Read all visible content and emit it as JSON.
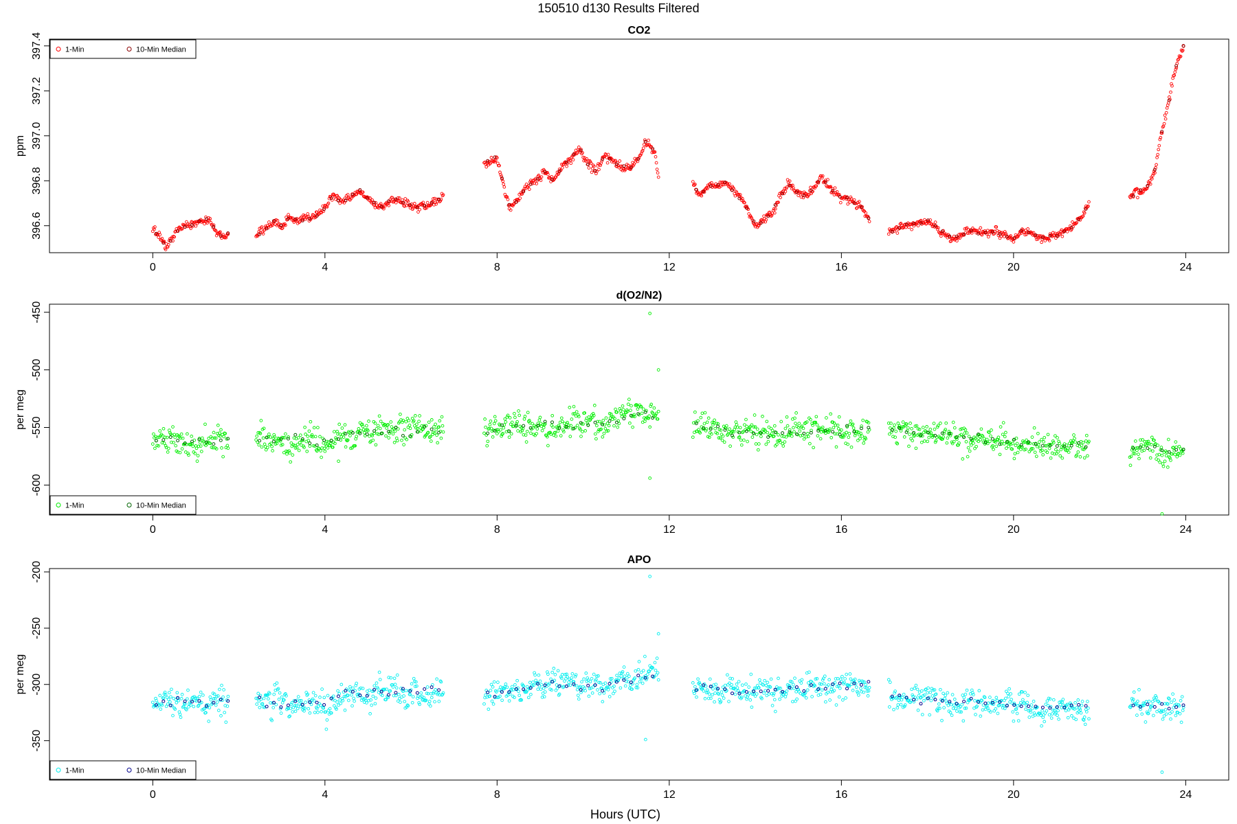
{
  "figure": {
    "title": "150510    d130    Results Filtered",
    "xlabel": "Hours (UTC)"
  },
  "chart_data": [
    {
      "type": "scatter",
      "title": "CO2",
      "xlabel": "",
      "ylabel": "ppm",
      "xlim": [
        -2.4,
        25
      ],
      "ylim": [
        396.48,
        397.43
      ],
      "xticks": [
        0,
        4,
        8,
        12,
        16,
        20,
        24
      ],
      "yticks": [
        396.6,
        396.8,
        397.0,
        397.2,
        397.4
      ],
      "ytick_labels": [
        "396.6",
        "396.8",
        "397.0",
        "397.2",
        "397.4"
      ],
      "legend_position": "top-left",
      "series": [
        {
          "name": "1-Min",
          "color": "#ff0000"
        },
        {
          "name": "10-Min Median",
          "color": "#8b0000"
        }
      ],
      "trend": [
        [
          0.0,
          396.58
        ],
        [
          0.15,
          396.56
        ],
        [
          0.3,
          396.5
        ],
        [
          0.45,
          396.54
        ],
        [
          0.6,
          396.58
        ],
        [
          0.8,
          396.6
        ],
        [
          1.0,
          396.61
        ],
        [
          1.15,
          396.62
        ],
        [
          1.3,
          396.63
        ],
        [
          1.45,
          396.58
        ],
        [
          1.6,
          396.55
        ],
        [
          1.75,
          396.57
        ],
        [
          2.4,
          396.55
        ],
        [
          2.6,
          396.58
        ],
        [
          2.8,
          396.62
        ],
        [
          3.0,
          396.6
        ],
        [
          3.2,
          396.64
        ],
        [
          3.4,
          396.62
        ],
        [
          3.6,
          396.63
        ],
        [
          3.8,
          396.64
        ],
        [
          4.0,
          396.68
        ],
        [
          4.2,
          396.74
        ],
        [
          4.35,
          396.7
        ],
        [
          4.6,
          396.73
        ],
        [
          4.8,
          396.76
        ],
        [
          5.0,
          396.72
        ],
        [
          5.3,
          396.68
        ],
        [
          5.6,
          396.72
        ],
        [
          5.9,
          396.7
        ],
        [
          6.2,
          396.68
        ],
        [
          6.5,
          396.7
        ],
        [
          6.75,
          396.73
        ],
        [
          7.7,
          396.87
        ],
        [
          7.85,
          396.9
        ],
        [
          8.0,
          396.9
        ],
        [
          8.15,
          396.78
        ],
        [
          8.3,
          396.68
        ],
        [
          8.5,
          396.72
        ],
        [
          8.7,
          396.78
        ],
        [
          8.9,
          396.8
        ],
        [
          9.1,
          396.84
        ],
        [
          9.3,
          396.8
        ],
        [
          9.5,
          396.86
        ],
        [
          9.7,
          396.9
        ],
        [
          9.9,
          396.95
        ],
        [
          10.1,
          396.88
        ],
        [
          10.3,
          396.84
        ],
        [
          10.5,
          396.92
        ],
        [
          10.7,
          396.88
        ],
        [
          10.9,
          396.86
        ],
        [
          11.1,
          396.86
        ],
        [
          11.3,
          396.9
        ],
        [
          11.45,
          396.98
        ],
        [
          11.55,
          396.96
        ],
        [
          11.65,
          396.93
        ],
        [
          11.75,
          396.82
        ],
        [
          12.55,
          396.78
        ],
        [
          12.7,
          396.73
        ],
        [
          12.9,
          396.77
        ],
        [
          13.1,
          396.78
        ],
        [
          13.3,
          396.79
        ],
        [
          13.5,
          396.75
        ],
        [
          13.7,
          396.71
        ],
        [
          13.85,
          396.66
        ],
        [
          14.0,
          396.6
        ],
        [
          14.2,
          396.62
        ],
        [
          14.4,
          396.67
        ],
        [
          14.6,
          396.74
        ],
        [
          14.8,
          396.79
        ],
        [
          15.0,
          396.74
        ],
        [
          15.2,
          396.73
        ],
        [
          15.4,
          396.78
        ],
        [
          15.55,
          396.82
        ],
        [
          15.7,
          396.77
        ],
        [
          15.9,
          396.74
        ],
        [
          16.1,
          396.72
        ],
        [
          16.3,
          396.7
        ],
        [
          16.5,
          396.68
        ],
        [
          16.65,
          396.63
        ],
        [
          17.1,
          396.57
        ],
        [
          17.4,
          396.6
        ],
        [
          17.7,
          396.61
        ],
        [
          18.0,
          396.62
        ],
        [
          18.2,
          396.6
        ],
        [
          18.4,
          396.56
        ],
        [
          18.6,
          396.54
        ],
        [
          18.8,
          396.56
        ],
        [
          19.0,
          396.58
        ],
        [
          19.2,
          396.57
        ],
        [
          19.5,
          396.57
        ],
        [
          19.8,
          396.56
        ],
        [
          20.0,
          396.54
        ],
        [
          20.2,
          396.58
        ],
        [
          20.4,
          396.57
        ],
        [
          20.6,
          396.55
        ],
        [
          20.8,
          396.55
        ],
        [
          21.0,
          396.56
        ],
        [
          21.2,
          396.58
        ],
        [
          21.4,
          396.6
        ],
        [
          21.6,
          396.65
        ],
        [
          21.75,
          396.69
        ],
        [
          22.7,
          396.72
        ],
        [
          22.85,
          396.75
        ],
        [
          23.0,
          396.76
        ],
        [
          23.2,
          396.8
        ],
        [
          23.3,
          396.86
        ],
        [
          23.4,
          396.98
        ],
        [
          23.55,
          397.1
        ],
        [
          23.7,
          397.26
        ],
        [
          23.85,
          397.36
        ],
        [
          23.95,
          397.4
        ]
      ],
      "noise": 0.012
    },
    {
      "type": "scatter",
      "title": "d(O2/N2)",
      "xlabel": "",
      "ylabel": "per meg",
      "xlim": [
        -2.4,
        25
      ],
      "ylim": [
        -626,
        -443
      ],
      "xticks": [
        0,
        4,
        8,
        12,
        16,
        20,
        24
      ],
      "yticks": [
        -450,
        -500,
        -550,
        -600
      ],
      "ytick_labels": [
        "-450",
        "-500",
        "-550",
        "-600"
      ],
      "legend_position": "bottom-left",
      "series": [
        {
          "name": "1-Min",
          "color": "#00ee00"
        },
        {
          "name": "10-Min Median",
          "color": "#006400"
        }
      ],
      "trend": [
        [
          0.0,
          -562
        ],
        [
          1.75,
          -562
        ],
        [
          2.4,
          -560
        ],
        [
          4.0,
          -564
        ],
        [
          4.4,
          -557
        ],
        [
          6.75,
          -553
        ],
        [
          7.7,
          -553
        ],
        [
          9.0,
          -548
        ],
        [
          10.5,
          -546
        ],
        [
          11.5,
          -538
        ],
        [
          11.75,
          -535
        ],
        [
          12.55,
          -550
        ],
        [
          14.0,
          -555
        ],
        [
          16.65,
          -550
        ],
        [
          17.1,
          -552
        ],
        [
          19.0,
          -560
        ],
        [
          21.0,
          -566
        ],
        [
          21.75,
          -565
        ],
        [
          22.7,
          -568
        ],
        [
          23.95,
          -568
        ]
      ],
      "noise": 8,
      "outliers": [
        [
          11.55,
          -451
        ],
        [
          11.75,
          -500
        ],
        [
          11.55,
          -594
        ],
        [
          23.45,
          -625
        ]
      ]
    },
    {
      "type": "scatter",
      "title": "APO",
      "xlabel": "",
      "ylabel": "per meg",
      "xlim": [
        -2.4,
        25
      ],
      "ylim": [
        -385,
        -197
      ],
      "xticks": [
        0,
        4,
        8,
        12,
        16,
        20,
        24
      ],
      "yticks": [
        -200,
        -250,
        -300,
        -350
      ],
      "ytick_labels": [
        "-200",
        "-250",
        "-300",
        "-350"
      ],
      "legend_position": "bottom-left",
      "series": [
        {
          "name": "1-Min",
          "color": "#00eeee"
        },
        {
          "name": "10-Min Median",
          "color": "#00008b"
        }
      ],
      "trend": [
        [
          0.0,
          -317
        ],
        [
          1.75,
          -317
        ],
        [
          2.4,
          -315
        ],
        [
          4.0,
          -318
        ],
        [
          4.4,
          -310
        ],
        [
          6.75,
          -305
        ],
        [
          7.7,
          -308
        ],
        [
          9.0,
          -302
        ],
        [
          10.5,
          -300
        ],
        [
          11.5,
          -292
        ],
        [
          11.75,
          -288
        ],
        [
          12.55,
          -302
        ],
        [
          14.0,
          -305
        ],
        [
          16.65,
          -300
        ],
        [
          17.1,
          -310
        ],
        [
          19.0,
          -315
        ],
        [
          21.0,
          -322
        ],
        [
          21.75,
          -320
        ],
        [
          22.7,
          -320
        ],
        [
          23.95,
          -320
        ]
      ],
      "noise": 8,
      "outliers": [
        [
          11.55,
          -204
        ],
        [
          11.75,
          -255
        ],
        [
          11.45,
          -349
        ],
        [
          23.45,
          -378
        ]
      ]
    }
  ]
}
